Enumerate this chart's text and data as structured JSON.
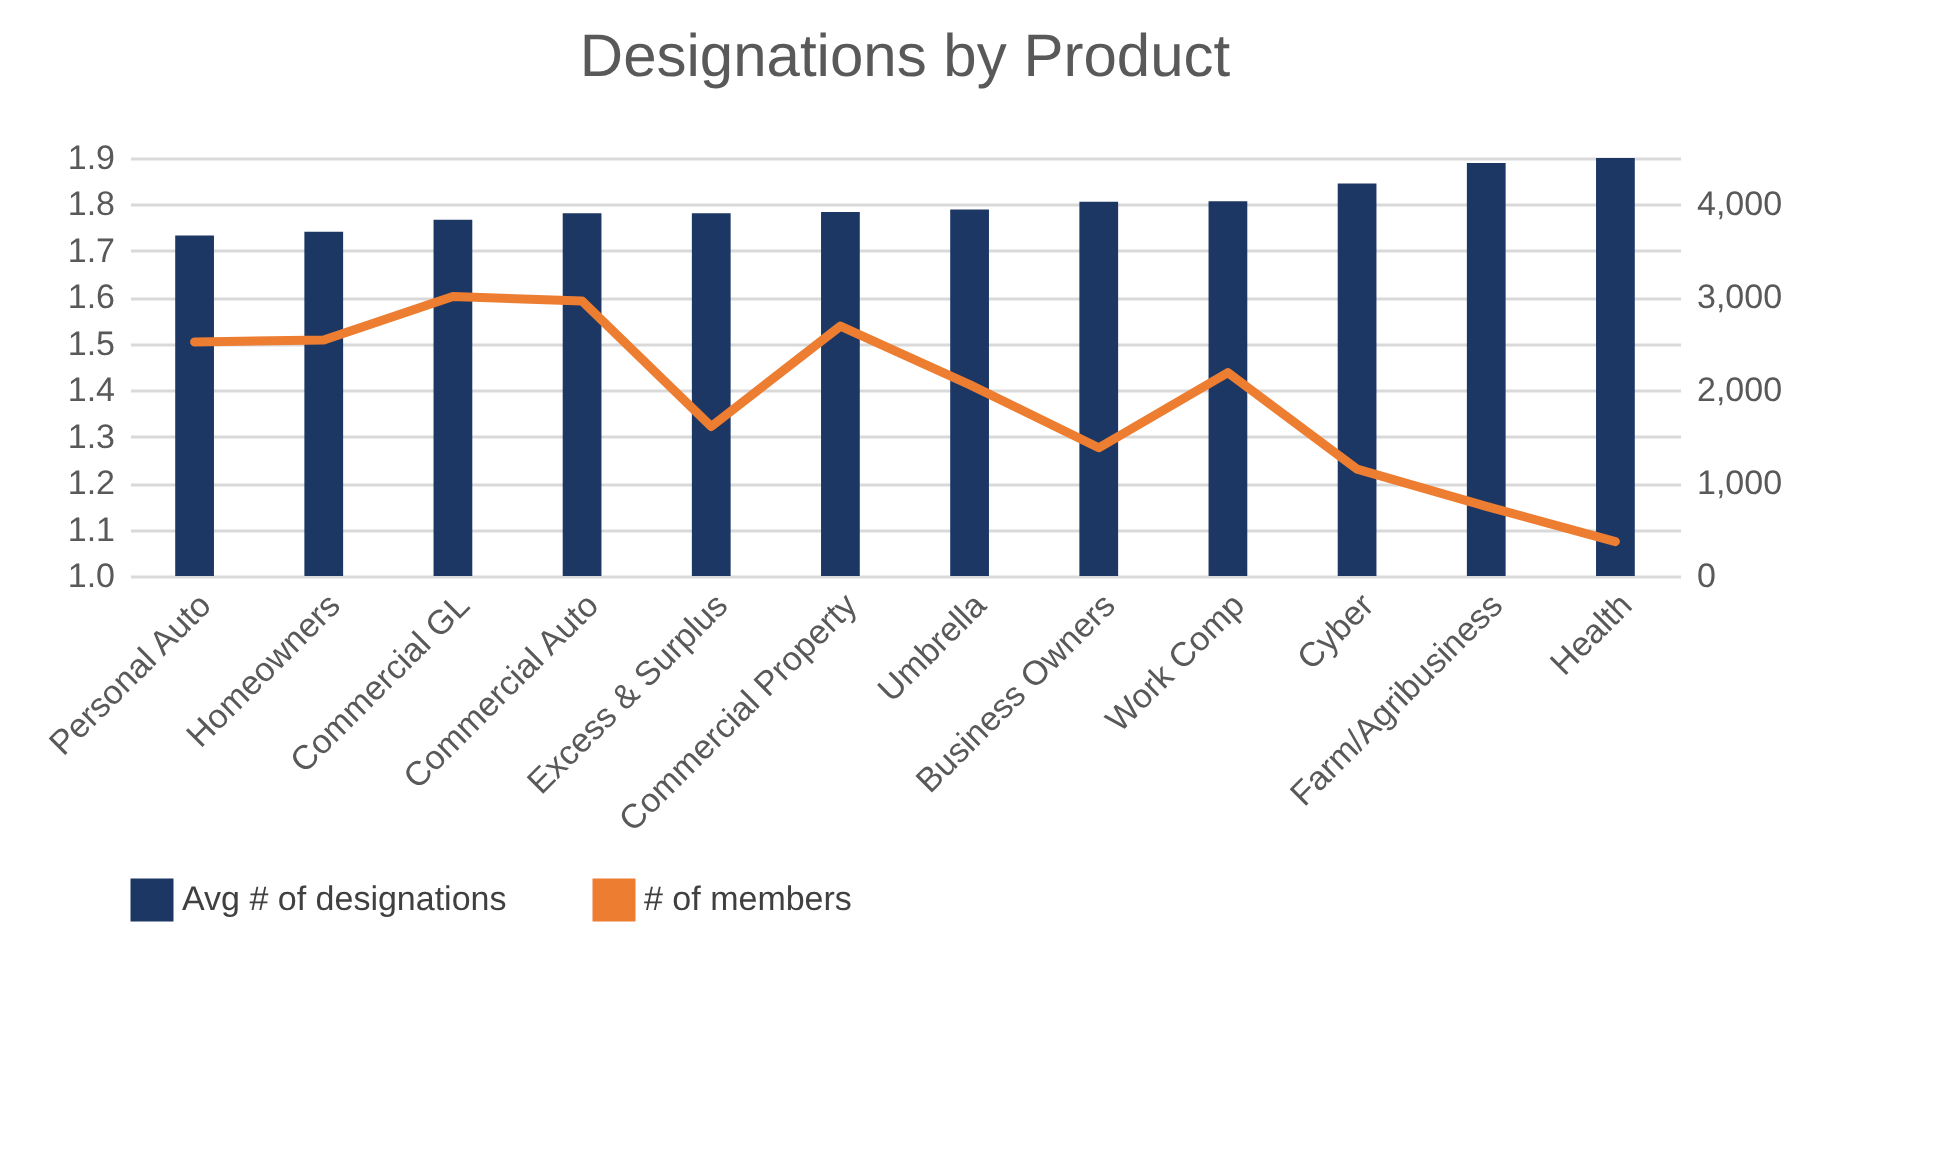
{
  "chart_data": {
    "type": "bar",
    "title": "Designations by Product",
    "categories": [
      "Personal Auto",
      "Homeowners",
      "Commercial GL",
      "Commercial Auto",
      "Excess & Surplus",
      "Commercial Property",
      "Umbrella",
      "Business Owners",
      "Work Comp",
      "Cyber",
      "Farm/Agribusiness",
      "Health"
    ],
    "series": [
      {
        "name": "Avg # of designations",
        "color": "#1c3764",
        "values": [
          1.733,
          1.741,
          1.767,
          1.781,
          1.781,
          1.784,
          1.789,
          1.806,
          1.807,
          1.845,
          1.889,
          1.9
        ]
      },
      {
        "name": "# of members",
        "type": "line",
        "axis": "y2",
        "color": "#ed7d31",
        "values": [
          2520,
          2540,
          3010,
          2960,
          1610,
          2690,
          2060,
          1380,
          2190,
          1150,
          750,
          370
        ]
      }
    ],
    "ylim": [
      1.0,
      1.9
    ],
    "yticks": [
      {
        "value": 1.0,
        "label": "1.0"
      },
      1.1,
      1.2,
      1.3,
      1.4,
      1.5,
      1.6,
      1.7,
      1.8,
      1.9
    ],
    "y2lim": [
      0,
      4500
    ],
    "y2ticks": [
      0,
      {
        "value": 1000,
        "label": "1,000"
      },
      {
        "value": 2000,
        "label": "2,000"
      },
      {
        "value": 3000,
        "label": "3,000"
      },
      {
        "value": 4000,
        "label": "4,000"
      }
    ],
    "grid": "y",
    "legend": "bottom"
  }
}
